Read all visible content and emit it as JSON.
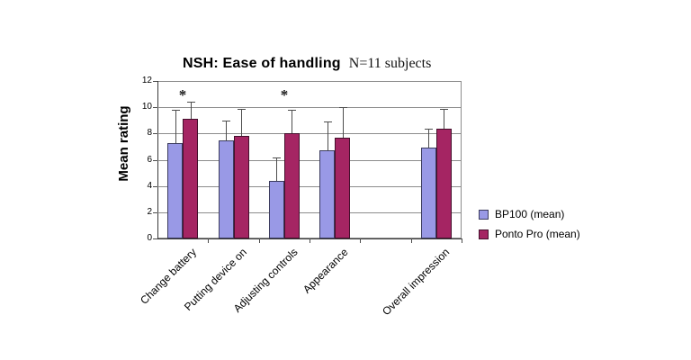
{
  "chart_data": {
    "type": "bar",
    "title": "NSH: Ease of handling",
    "subtitle": "N=11 subjects",
    "ylabel": "Mean rating",
    "ylim": [
      0,
      12
    ],
    "yticks": [
      0,
      2,
      4,
      6,
      8,
      10,
      12
    ],
    "grid": true,
    "legend_position": "right",
    "categories": [
      "Change battery",
      "Putting device on",
      "Adjusting controls",
      "Appearance",
      "",
      "Overall impression"
    ],
    "significance": [
      true,
      false,
      true,
      false,
      false,
      false
    ],
    "significance_symbol": "*",
    "series": [
      {
        "name": "BP100 (mean)",
        "color": "#9999e6",
        "border": "#3c3c5e",
        "values": [
          7.3,
          7.5,
          4.4,
          6.7,
          null,
          6.9
        ],
        "error_top": [
          9.8,
          9.0,
          6.2,
          8.9,
          null,
          8.4
        ]
      },
      {
        "name": "Ponto Pro (mean)",
        "color": "#a52563",
        "border": "#43102c",
        "values": [
          9.1,
          7.8,
          8.0,
          7.7,
          null,
          8.4
        ],
        "error_top": [
          10.4,
          9.9,
          9.8,
          10.0,
          null,
          9.9
        ]
      }
    ]
  }
}
